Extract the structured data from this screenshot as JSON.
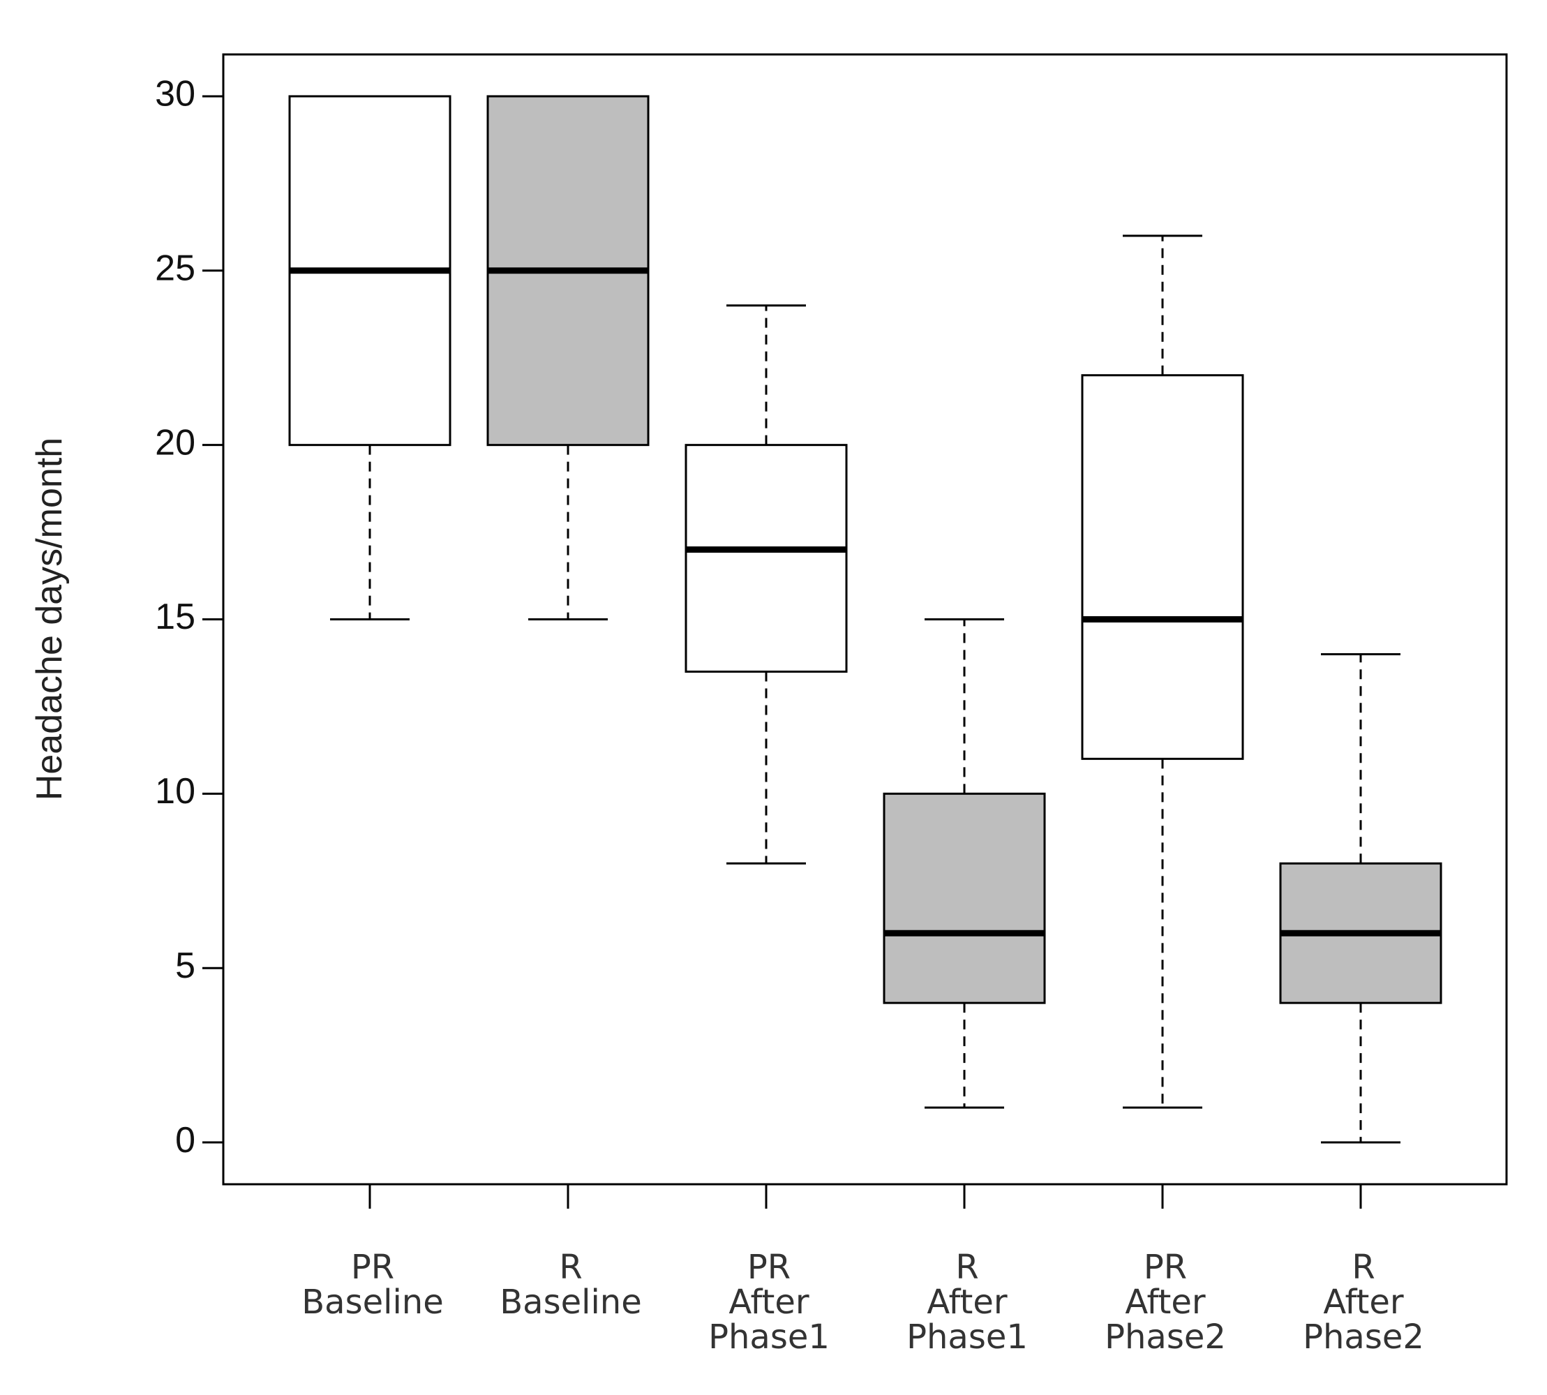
{
  "chart_data": {
    "type": "box",
    "y_label": "Headache days/month",
    "categories": [
      [
        "PR",
        "Baseline"
      ],
      [
        "R",
        "Baseline"
      ],
      [
        "PR",
        "After",
        "Phase1"
      ],
      [
        "R",
        "After",
        "Phase1"
      ],
      [
        "PR",
        "After",
        "Phase2"
      ],
      [
        "R",
        "After",
        "Phase2"
      ]
    ],
    "boxes": [
      {
        "min": 15,
        "q1": 20,
        "median": 25,
        "q3": 30,
        "max": 30
      },
      {
        "min": 15,
        "q1": 20,
        "median": 25,
        "q3": 30,
        "max": 30
      },
      {
        "min": 8,
        "q1": 13.5,
        "median": 17,
        "q3": 20,
        "max": 24
      },
      {
        "min": 1,
        "q1": 4,
        "median": 6,
        "q3": 10,
        "max": 15
      },
      {
        "min": 1,
        "q1": 11,
        "median": 15,
        "q3": 22,
        "max": 26
      },
      {
        "min": 0,
        "q1": 4,
        "median": 6,
        "q3": 8,
        "max": 14
      }
    ],
    "colors": [
      "#ffffff",
      "#bebebe",
      "#ffffff",
      "#bebebe",
      "#ffffff",
      "#bebebe"
    ],
    "ylim": [
      -1.2,
      31.2
    ],
    "yticks": [
      0,
      5,
      10,
      15,
      20,
      25,
      30
    ]
  }
}
